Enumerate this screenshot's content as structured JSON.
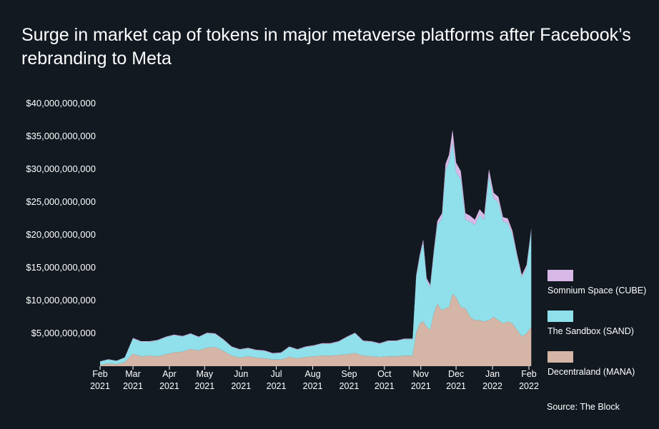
{
  "colors": {
    "background": "#121921",
    "cube": "#d7b8e6",
    "sand": "#8fe0ea",
    "mana": "#d4b5a6",
    "text": "#ffffff"
  },
  "chart_data": {
    "type": "area",
    "stacked": true,
    "title": "Surge in market cap of tokens in major metaverse platforms after Facebook’s rebranding to Meta",
    "source": "Source: The Block",
    "xlabel": "",
    "ylabel": "",
    "ylim": [
      0,
      40000000000
    ],
    "y_ticks": [
      {
        "value": 5000000000,
        "label": "$5,000,000,000"
      },
      {
        "value": 10000000000,
        "label": "$10,000,000,000"
      },
      {
        "value": 15000000000,
        "label": "$15,000,000,000"
      },
      {
        "value": 20000000000,
        "label": "$20,000,000,000"
      },
      {
        "value": 25000000000,
        "label": "$25,000,000,000"
      },
      {
        "value": 30000000000,
        "label": "$30,000,000,000"
      },
      {
        "value": 35000000000,
        "label": "$35,000,000,000"
      },
      {
        "value": 40000000000,
        "label": "$40,000,000,000"
      }
    ],
    "x_ticks": [
      {
        "date": "2021-02-01",
        "month": "Feb",
        "year": "2021"
      },
      {
        "date": "2021-03-01",
        "month": "Mar",
        "year": "2021"
      },
      {
        "date": "2021-04-01",
        "month": "Apr",
        "year": "2021"
      },
      {
        "date": "2021-05-01",
        "month": "May",
        "year": "2021"
      },
      {
        "date": "2021-06-01",
        "month": "Jun",
        "year": "2021"
      },
      {
        "date": "2021-07-01",
        "month": "Jul",
        "year": "2021"
      },
      {
        "date": "2021-08-01",
        "month": "Aug",
        "year": "2021"
      },
      {
        "date": "2021-09-01",
        "month": "Sep",
        "year": "2021"
      },
      {
        "date": "2021-10-01",
        "month": "Oct",
        "year": "2021"
      },
      {
        "date": "2021-11-01",
        "month": "Nov",
        "year": "2021"
      },
      {
        "date": "2021-12-01",
        "month": "Dec",
        "year": "2021"
      },
      {
        "date": "2022-01-01",
        "month": "Jan",
        "year": "2022"
      },
      {
        "date": "2022-02-01",
        "month": "Feb",
        "year": "2022"
      }
    ],
    "x": [
      "2021-02-01",
      "2021-02-08",
      "2021-02-15",
      "2021-02-22",
      "2021-03-01",
      "2021-03-08",
      "2021-03-15",
      "2021-03-22",
      "2021-03-29",
      "2021-04-05",
      "2021-04-12",
      "2021-04-19",
      "2021-04-26",
      "2021-05-03",
      "2021-05-10",
      "2021-05-17",
      "2021-05-24",
      "2021-05-31",
      "2021-06-07",
      "2021-06-14",
      "2021-06-21",
      "2021-06-28",
      "2021-07-05",
      "2021-07-12",
      "2021-07-19",
      "2021-07-26",
      "2021-08-02",
      "2021-08-09",
      "2021-08-16",
      "2021-08-23",
      "2021-08-30",
      "2021-09-06",
      "2021-09-13",
      "2021-09-20",
      "2021-09-27",
      "2021-10-04",
      "2021-10-11",
      "2021-10-18",
      "2021-10-25",
      "2021-10-28",
      "2021-10-31",
      "2021-11-03",
      "2021-11-06",
      "2021-11-09",
      "2021-11-12",
      "2021-11-15",
      "2021-11-19",
      "2021-11-22",
      "2021-11-25",
      "2021-11-28",
      "2021-12-01",
      "2021-12-05",
      "2021-12-09",
      "2021-12-13",
      "2021-12-17",
      "2021-12-21",
      "2021-12-25",
      "2021-12-29",
      "2022-01-02",
      "2022-01-06",
      "2022-01-10",
      "2022-01-14",
      "2022-01-18",
      "2022-01-22",
      "2022-01-26",
      "2022-01-30",
      "2022-02-03"
    ],
    "series": [
      {
        "name": "Decentraland (MANA)",
        "color": "#d4b5a6",
        "values": [
          0.2,
          0.4,
          0.3,
          0.6,
          1.9,
          1.5,
          1.6,
          1.5,
          1.8,
          2.1,
          2.2,
          2.6,
          2.4,
          2.8,
          2.9,
          2.3,
          1.6,
          1.3,
          1.5,
          1.3,
          1.2,
          1.0,
          1.0,
          1.4,
          1.2,
          1.4,
          1.5,
          1.6,
          1.6,
          1.7,
          1.8,
          2.0,
          1.6,
          1.5,
          1.4,
          1.5,
          1.5,
          1.6,
          1.6,
          5.0,
          6.5,
          6.8,
          6.0,
          5.5,
          8.0,
          9.5,
          8.5,
          8.8,
          9.0,
          11.0,
          10.5,
          9.0,
          8.8,
          7.5,
          7.0,
          7.0,
          6.8,
          7.0,
          7.5,
          7.0,
          6.5,
          6.8,
          6.5,
          5.5,
          4.5,
          5.0,
          6.0
        ]
      },
      {
        "name": "The Sandbox (SAND)",
        "color": "#8fe0ea",
        "values": [
          0.5,
          0.6,
          0.5,
          0.7,
          2.3,
          2.2,
          2.1,
          2.4,
          2.6,
          2.6,
          2.3,
          2.3,
          2.0,
          2.2,
          2.0,
          1.7,
          1.3,
          1.2,
          1.2,
          1.1,
          1.1,
          0.9,
          1.0,
          1.5,
          1.3,
          1.5,
          1.6,
          1.8,
          1.8,
          2.0,
          2.6,
          3.0,
          2.2,
          2.2,
          2.0,
          2.3,
          2.3,
          2.5,
          2.5,
          8.5,
          10.0,
          12.0,
          7.0,
          6.5,
          9.0,
          12.0,
          14.0,
          21.0,
          22.0,
          23.0,
          19.0,
          19.5,
          13.5,
          14.5,
          14.5,
          16.0,
          15.5,
          22.0,
          18.0,
          18.0,
          15.5,
          15.0,
          13.5,
          11.0,
          9.0,
          10.0,
          14.5
        ]
      },
      {
        "name": "Somnium Space (CUBE)",
        "color": "#d7b8e6",
        "values": [
          0.05,
          0.05,
          0.05,
          0.05,
          0.1,
          0.1,
          0.1,
          0.1,
          0.1,
          0.1,
          0.1,
          0.1,
          0.1,
          0.1,
          0.1,
          0.1,
          0.1,
          0.1,
          0.1,
          0.1,
          0.1,
          0.1,
          0.1,
          0.1,
          0.1,
          0.1,
          0.1,
          0.1,
          0.1,
          0.1,
          0.1,
          0.1,
          0.1,
          0.1,
          0.1,
          0.1,
          0.1,
          0.1,
          0.1,
          0.3,
          0.4,
          0.5,
          0.4,
          0.4,
          0.5,
          0.6,
          0.8,
          1.0,
          1.2,
          2.0,
          1.5,
          1.2,
          1.0,
          0.9,
          0.8,
          0.9,
          0.8,
          1.0,
          0.9,
          0.8,
          0.7,
          0.7,
          0.6,
          0.5,
          0.4,
          0.4,
          0.5
        ]
      }
    ],
    "legend_placement": "right"
  }
}
